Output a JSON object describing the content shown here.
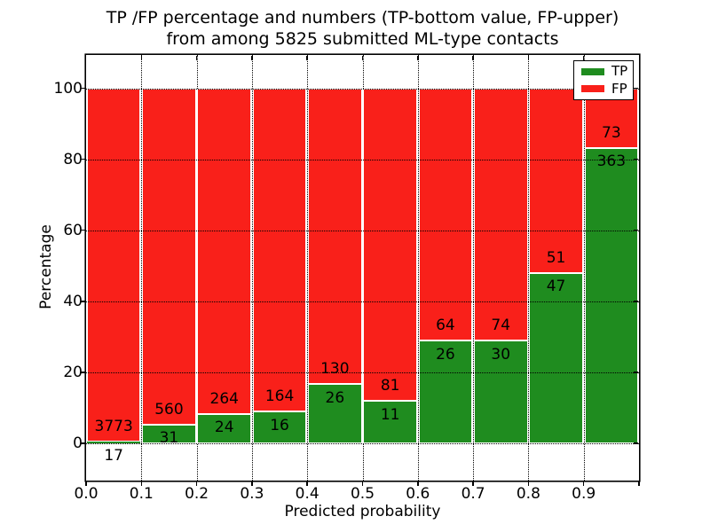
{
  "figure": {
    "title_line1": "TP /FP percentage and numbers (TP-bottom value, FP-upper)",
    "title_line2": "from among 5825 submitted ML-type contacts"
  },
  "chart_data": {
    "type": "bar",
    "stacked": true,
    "normalized_to": 100,
    "title": "TP /FP percentage and numbers (TP-bottom value, FP-upper) from among 5825 submitted ML-type contacts",
    "xlabel": "Predicted probability",
    "ylabel": "Percentage",
    "total_contacts": 5825,
    "bin_width": 0.1,
    "bin_starts": [
      0.0,
      0.1,
      0.2,
      0.3,
      0.4,
      0.5,
      0.6,
      0.7,
      0.8,
      0.9
    ],
    "series": [
      {
        "name": "TP",
        "color": "#1f8c1f",
        "counts": [
          17,
          31,
          24,
          16,
          26,
          11,
          26,
          30,
          47,
          363
        ]
      },
      {
        "name": "FP",
        "color": "#f9201a",
        "counts": [
          3773,
          560,
          264,
          164,
          130,
          81,
          64,
          74,
          51,
          73
        ]
      }
    ],
    "tp_percent_of_bin": [
      0.45,
      5.25,
      8.33,
      8.89,
      16.67,
      11.96,
      28.89,
      28.85,
      47.96,
      83.26
    ],
    "xlim": [
      0.0,
      1.0
    ],
    "ylim": [
      -10.5,
      109.4
    ],
    "yticks": [
      0,
      20,
      40,
      60,
      80,
      100
    ],
    "xtick_labels": [
      "0.0",
      "0.1",
      "0.2",
      "0.3",
      "0.4",
      "0.5",
      "0.6",
      "0.7",
      "0.8",
      "0.9"
    ],
    "grid": "dotted black, horizontal at yticks and vertical at xticks",
    "bar_edge_color": "#ffffff",
    "legend": {
      "position": "upper right",
      "items": [
        {
          "label": "TP",
          "color": "#1f8c1f"
        },
        {
          "label": "FP",
          "color": "#f9201a"
        }
      ]
    }
  }
}
